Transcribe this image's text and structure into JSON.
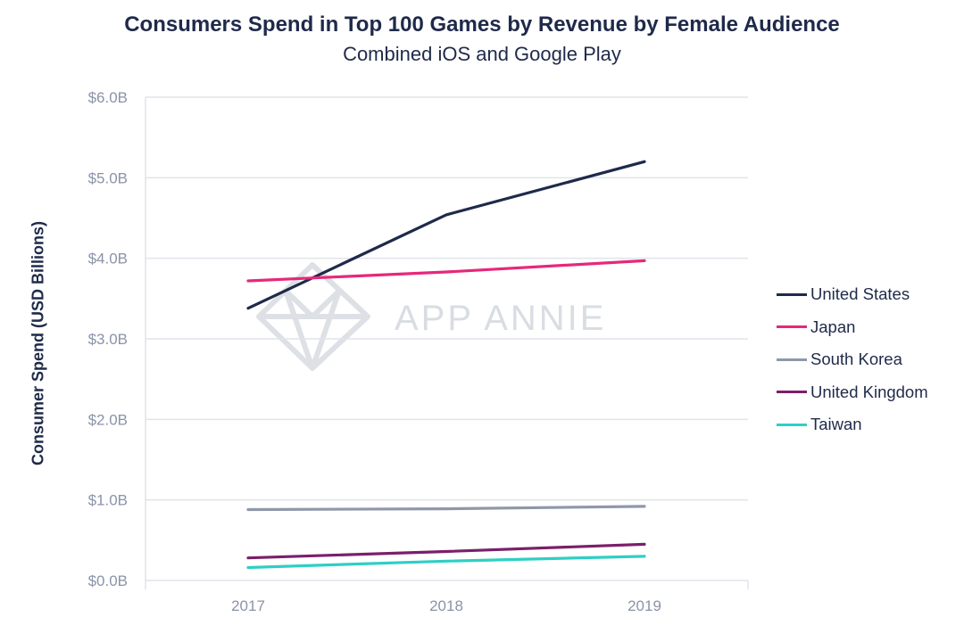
{
  "chart_data": {
    "type": "line",
    "title": "Consumers Spend in Top 100 Games by Revenue by Female Audience",
    "subtitle": "Combined iOS and Google Play",
    "xlabel": "",
    "ylabel": "Consumer Spend (USD Billions)",
    "categories": [
      "2017",
      "2018",
      "2019"
    ],
    "ylim": [
      0,
      6
    ],
    "yticks": [
      {
        "value": 0,
        "label": "$0.0B"
      },
      {
        "value": 1,
        "label": "$1.0B"
      },
      {
        "value": 2,
        "label": "$2.0B"
      },
      {
        "value": 3,
        "label": "$3.0B"
      },
      {
        "value": 4,
        "label": "$4.0B"
      },
      {
        "value": 5,
        "label": "$5.0B"
      },
      {
        "value": 6,
        "label": "$6.0B"
      }
    ],
    "grid": true,
    "legend_position": "right",
    "series": [
      {
        "name": "United States",
        "color": "#1f2a4a",
        "values": [
          3.38,
          4.54,
          5.2
        ]
      },
      {
        "name": "Japan",
        "color": "#e6287a",
        "values": [
          3.72,
          3.83,
          3.97
        ]
      },
      {
        "name": "South Korea",
        "color": "#8f97aa",
        "values": [
          0.88,
          0.89,
          0.92
        ]
      },
      {
        "name": "United Kingdom",
        "color": "#7b1f6a",
        "values": [
          0.28,
          0.36,
          0.45
        ]
      },
      {
        "name": "Taiwan",
        "color": "#2ecfc4",
        "values": [
          0.16,
          0.24,
          0.3
        ]
      }
    ],
    "watermark": "APP ANNIE"
  }
}
